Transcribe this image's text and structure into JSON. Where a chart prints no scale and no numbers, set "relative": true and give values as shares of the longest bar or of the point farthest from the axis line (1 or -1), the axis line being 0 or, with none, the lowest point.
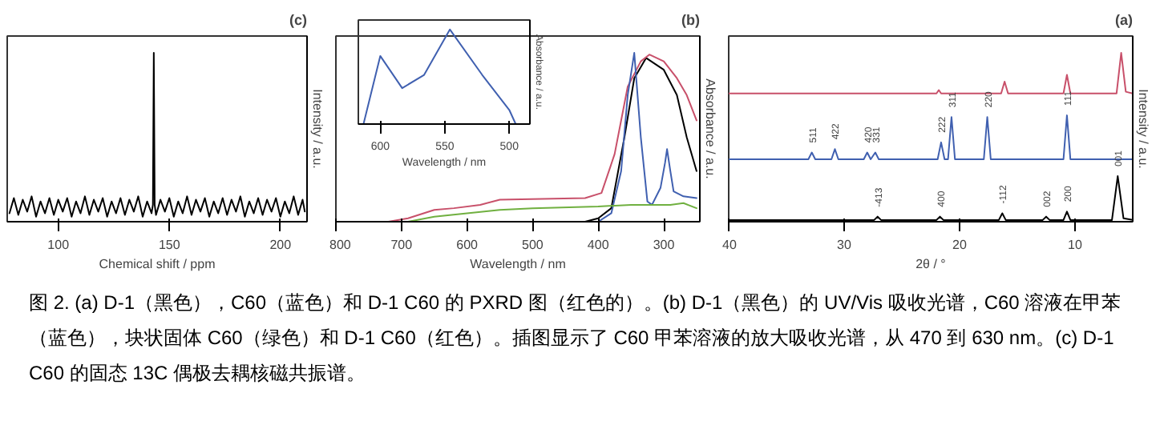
{
  "chart_data": [
    {
      "type": "line",
      "title": "(c)",
      "xlabel": "Chemical shift / ppm",
      "ylabel": "Intensity / a.u.",
      "relative": true,
      "xlim": [
        77,
        212
      ],
      "xticks": [
        100,
        150,
        200
      ],
      "tick_labels": "x",
      "grid": false,
      "series": [
        {
          "color": "#000000",
          "x": [
            78,
            80,
            82,
            84,
            86,
            88,
            90,
            92,
            94,
            96,
            98,
            100,
            102,
            104,
            106,
            108,
            110,
            112,
            114,
            116,
            118,
            120,
            122,
            124,
            126,
            128,
            130,
            132,
            134,
            136,
            138,
            140,
            142,
            142.6,
            143,
            143.4,
            144,
            146,
            148,
            150,
            152,
            154,
            156,
            158,
            160,
            162,
            164,
            166,
            168,
            170,
            172,
            174,
            176,
            178,
            180,
            182,
            184,
            186,
            188,
            190,
            192,
            194,
            196,
            198,
            200,
            202,
            204,
            206,
            208,
            210,
            211
          ],
          "values": [
            0.05,
            0.14,
            0.04,
            0.13,
            0.06,
            0.15,
            0.03,
            0.12,
            0.05,
            0.14,
            0.04,
            0.13,
            0.06,
            0.14,
            0.03,
            0.12,
            0.05,
            0.15,
            0.04,
            0.13,
            0.06,
            0.14,
            0.03,
            0.12,
            0.05,
            0.14,
            0.04,
            0.13,
            0.06,
            0.15,
            0.03,
            0.12,
            0.05,
            0.1,
            1,
            0.1,
            0.04,
            0.13,
            0.06,
            0.14,
            0.03,
            0.12,
            0.05,
            0.15,
            0.04,
            0.13,
            0.06,
            0.14,
            0.03,
            0.12,
            0.05,
            0.14,
            0.04,
            0.13,
            0.06,
            0.15,
            0.03,
            0.12,
            0.05,
            0.14,
            0.04,
            0.13,
            0.06,
            0.14,
            0.03,
            0.12,
            0.05,
            0.15,
            0.04,
            0.13,
            0.06
          ]
        }
      ]
    },
    {
      "type": "line",
      "title": "(b)",
      "xlabel": "Wavelength / nm",
      "ylabel": "Absorbance / a.u.",
      "relative": true,
      "xlim": [
        800,
        245
      ],
      "xticks": [
        800,
        700,
        600,
        500,
        400,
        300
      ],
      "tick_labels": "x",
      "grid": false,
      "series": [
        {
          "color": "#000000",
          "x": [
            790,
            420,
            400,
            380,
            360,
            345,
            327,
            300,
            280,
            265,
            250
          ],
          "values": [
            0,
            0,
            0.02,
            0.08,
            0.5,
            0.85,
            0.97,
            0.9,
            0.75,
            0.5,
            0.3
          ]
        },
        {
          "color": "#c8506a",
          "x": [
            790,
            720,
            690,
            650,
            620,
            580,
            550,
            420,
            395,
            375,
            355,
            335,
            322,
            300,
            280,
            265,
            250
          ],
          "values": [
            0,
            0,
            0.02,
            0.07,
            0.08,
            0.1,
            0.13,
            0.14,
            0.17,
            0.4,
            0.8,
            0.95,
            0.99,
            0.95,
            0.85,
            0.75,
            0.6
          ]
        },
        {
          "color": "#4060b0",
          "x": [
            790,
            400,
            380,
            365,
            355,
            345,
            335,
            325,
            318,
            305,
            298,
            295,
            290,
            285,
            270,
            250
          ],
          "values": [
            0,
            0,
            0.05,
            0.3,
            0.75,
            1,
            0.5,
            0.12,
            0.1,
            0.2,
            0.35,
            0.43,
            0.3,
            0.18,
            0.15,
            0.14
          ]
        },
        {
          "color": "#70b040",
          "x": [
            790,
            690,
            650,
            600,
            550,
            500,
            400,
            350,
            320,
            290,
            270,
            250
          ],
          "values": [
            0,
            0,
            0.03,
            0.05,
            0.07,
            0.08,
            0.09,
            0.1,
            0.1,
            0.1,
            0.11,
            0.08
          ]
        }
      ]
    },
    {
      "type": "line",
      "xlabel": "Wavelength / nm",
      "ylabel": "Absorbance / a.u.",
      "relative": true,
      "xlim": [
        617,
        484
      ],
      "xticks": [
        600,
        550,
        500
      ],
      "tick_labels": "x",
      "grid": false,
      "series": [
        {
          "color": "#4060b0",
          "x": [
            617,
            613,
            600,
            583,
            566,
            546,
            521,
            500,
            495,
            484
          ],
          "values": [
            0,
            0,
            0.72,
            0.38,
            0.52,
            1,
            0.52,
            0.15,
            0,
            0
          ]
        }
      ]
    },
    {
      "type": "line",
      "title": "(a)",
      "xlabel": "2θ / °",
      "ylabel": "Intensity / a.u.",
      "relative": true,
      "xlim": [
        40,
        5
      ],
      "xticks": [
        40,
        30,
        20,
        10
      ],
      "tick_labels": "x",
      "grid": false,
      "series": [
        {
          "color": "#c8506a",
          "x": [
            40,
            22,
            21.8,
            21.6,
            16.4,
            16.1,
            15.8,
            11,
            10.7,
            10.4,
            6.4,
            6.0,
            5.6,
            5
          ],
          "values": [
            0.76,
            0.76,
            0.78,
            0.76,
            0.76,
            0.83,
            0.76,
            0.76,
            0.87,
            0.76,
            0.76,
            1,
            0.77,
            0.76
          ]
        },
        {
          "color": "#4060b0",
          "x": [
            40,
            33.1,
            32.8,
            32.5,
            31.1,
            30.8,
            30.5,
            28.3,
            28.0,
            27.7,
            27.3,
            27.0,
            21.9,
            21.6,
            21.3,
            21.0,
            20.7,
            20.4,
            17.9,
            17.6,
            17.3,
            11.0,
            10.7,
            10.4,
            5
          ],
          "values": [
            0.37,
            0.37,
            0.41,
            0.37,
            0.37,
            0.43,
            0.37,
            0.37,
            0.41,
            0.37,
            0.41,
            0.37,
            0.37,
            0.47,
            0.37,
            0.37,
            0.62,
            0.37,
            0.37,
            0.62,
            0.37,
            0.37,
            0.63,
            0.37,
            0.37
          ]
        },
        {
          "color": "#000000",
          "x": [
            40,
            27.4,
            27.1,
            26.8,
            22,
            21.7,
            21.4,
            16.6,
            16.3,
            16.0,
            12.8,
            12.5,
            12.2,
            11.0,
            10.7,
            10.4,
            6.8,
            6.3,
            5.8,
            5
          ],
          "values": [
            0.01,
            0.01,
            0.03,
            0.01,
            0.01,
            0.03,
            0.01,
            0.01,
            0.05,
            0.01,
            0.01,
            0.03,
            0.01,
            0.01,
            0.06,
            0.01,
            0.01,
            0.27,
            0.02,
            0.01
          ]
        }
      ],
      "annotations": [
        {
          "text": "511",
          "x": 32.8,
          "y": 0.41
        },
        {
          "text": "422",
          "x": 30.8,
          "y": 0.43
        },
        {
          "text": "420",
          "x": 28.0,
          "y": 0.41
        },
        {
          "text": "331",
          "x": 27.3,
          "y": 0.41
        },
        {
          "text": "222",
          "x": 21.6,
          "y": 0.47
        },
        {
          "text": "311",
          "x": 20.7,
          "y": 0.62
        },
        {
          "text": "220",
          "x": 17.6,
          "y": 0.62
        },
        {
          "text": "111",
          "x": 10.7,
          "y": 0.63
        },
        {
          "text": "-413",
          "x": 27.1,
          "y": 0.03
        },
        {
          "text": "400",
          "x": 21.7,
          "y": 0.03
        },
        {
          "text": "-112",
          "x": 16.3,
          "y": 0.05
        },
        {
          "text": "002",
          "x": 12.5,
          "y": 0.03
        },
        {
          "text": "200",
          "x": 10.7,
          "y": 0.06
        },
        {
          "text": "001",
          "x": 6.3,
          "y": 0.27
        }
      ]
    },
    {
      "type": "other",
      "annotations": [
        "图 2. (a) D-1（黑色），C60（蓝色）和 D-1 C60 的 PXRD 图（红色的）。(b) D-1（黑色）的 UV/Vis 吸收光谱，C60 溶液在甲苯（蓝色），块状固体 C60（绿色）和 D-1 C60（红色）。插图显示了 C60 甲苯溶液的放大吸收光谱，从 470 到 630 nm。(c) D-1 C60 的固态 13C 偶极去耦核磁共振谱。"
      ]
    }
  ]
}
